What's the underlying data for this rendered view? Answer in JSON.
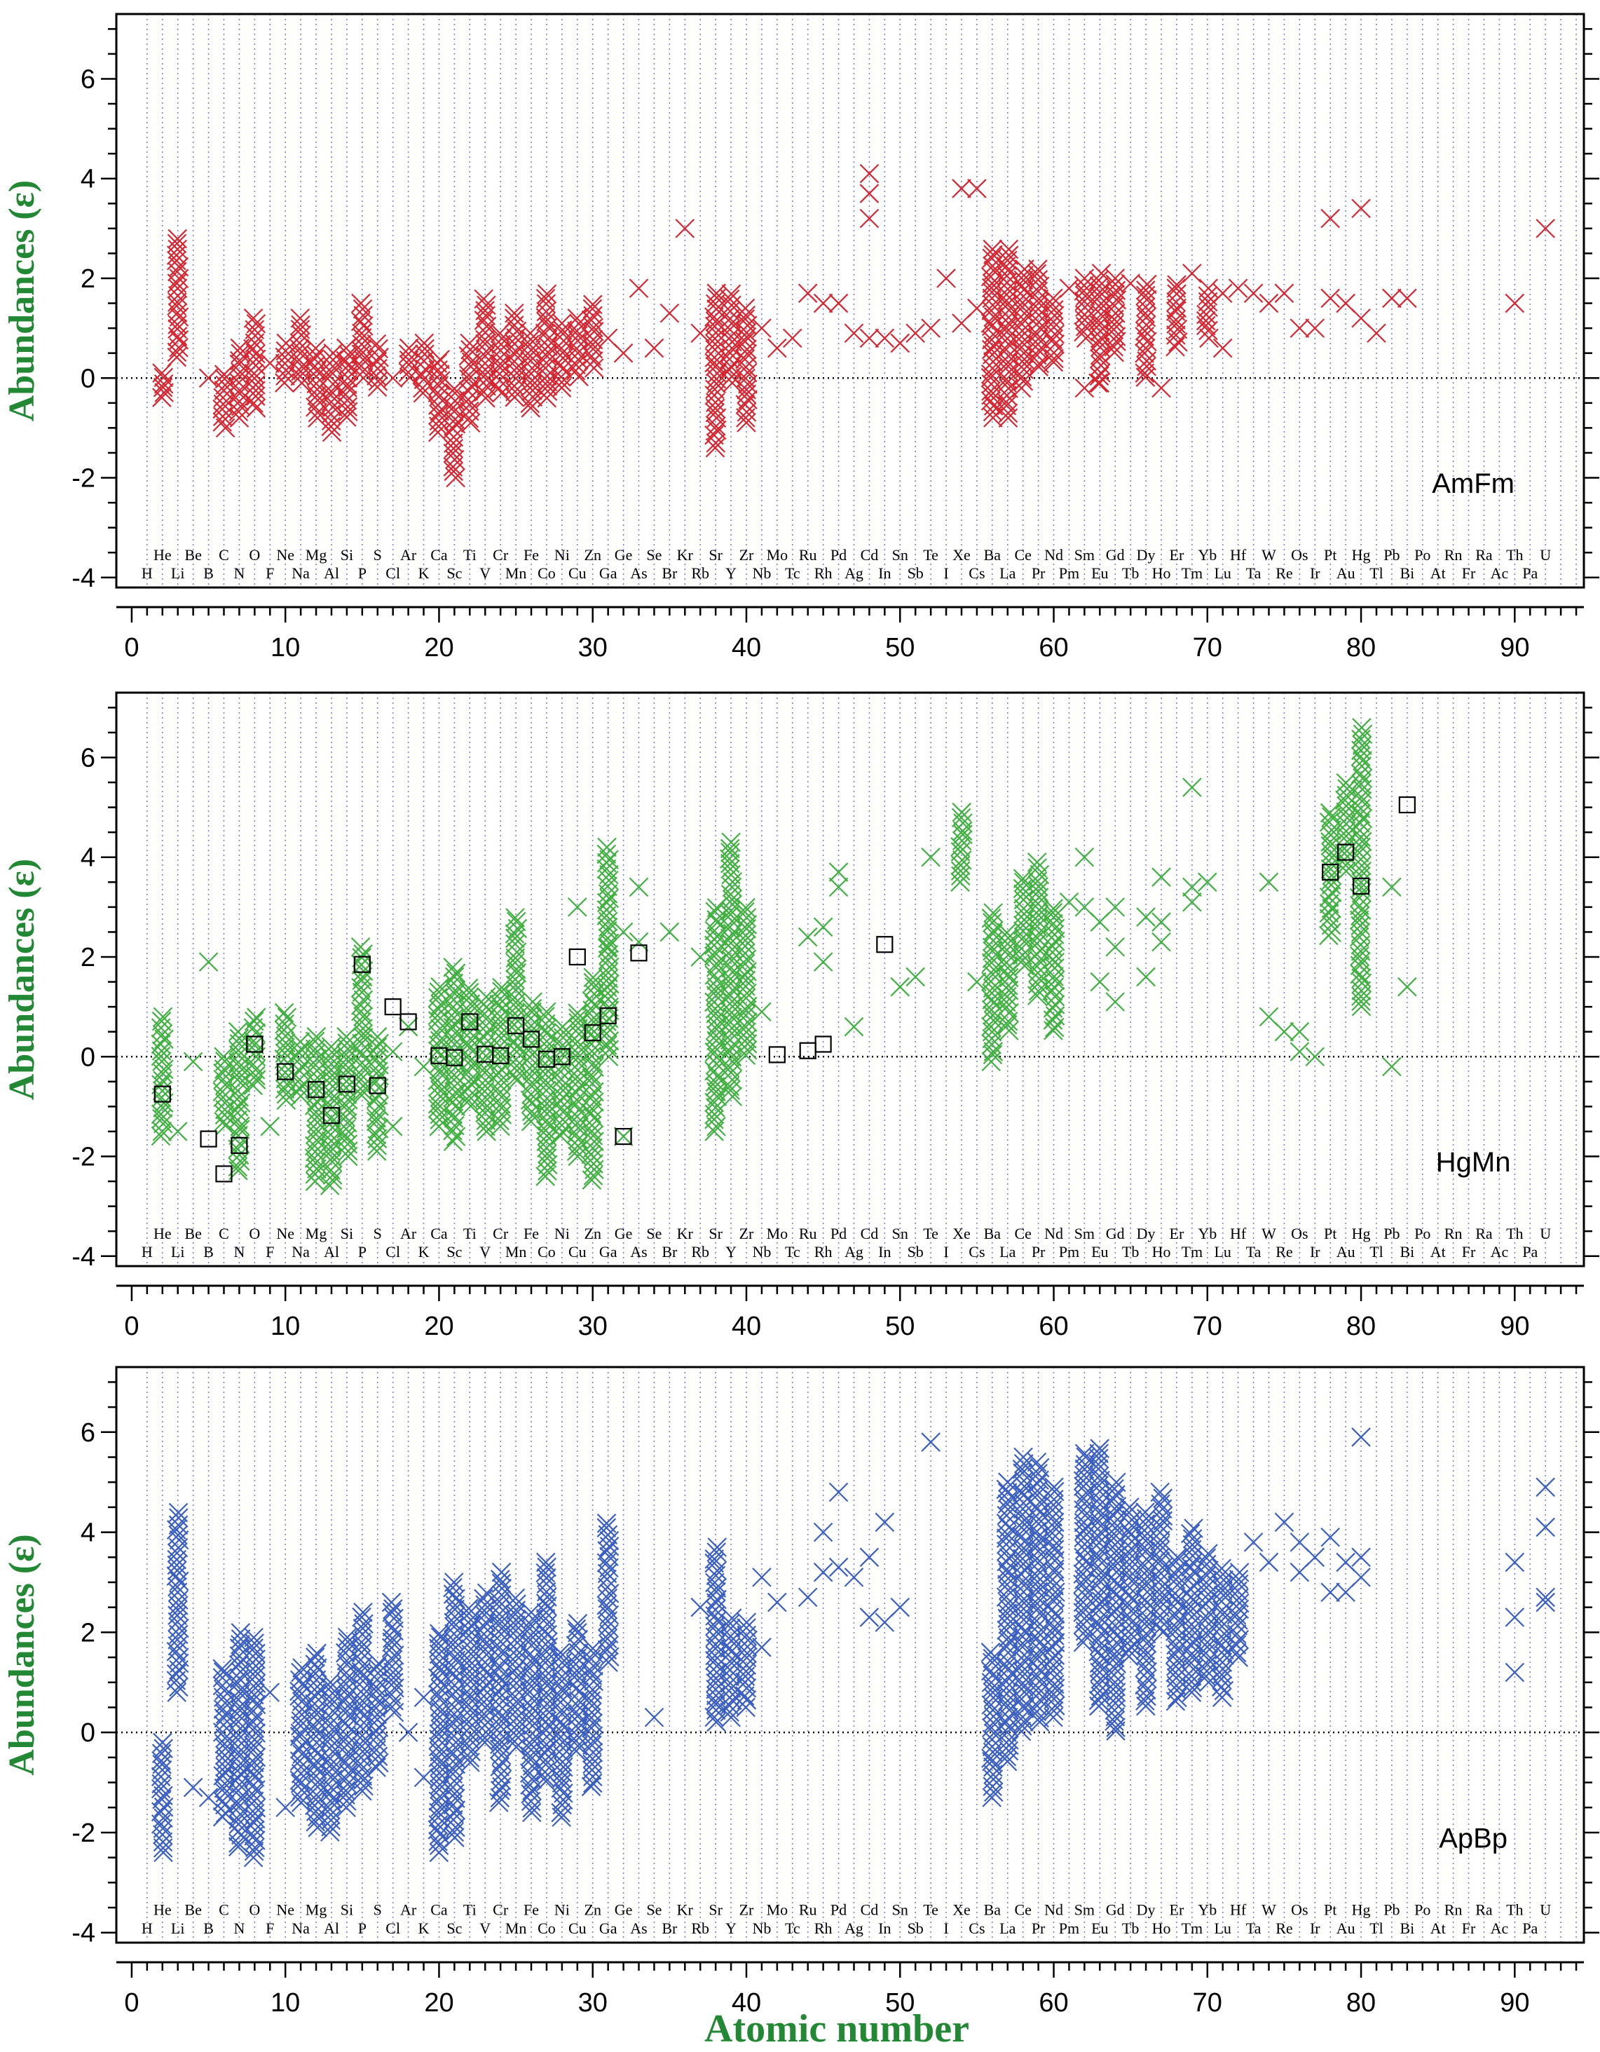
{
  "chart_data": [
    {
      "type": "scatter",
      "label": "AmFm",
      "color": "#d62631",
      "xlabel": "",
      "ylabel": "Abundances (ε)",
      "xlim": [
        -1,
        94.5
      ],
      "ylim": [
        -4.2,
        7.3
      ],
      "xticks": [
        0,
        10,
        20,
        30,
        40,
        50,
        60,
        70,
        80,
        90
      ],
      "yticks": [
        -4,
        -2,
        0,
        2,
        4,
        6
      ],
      "reference_line": 0,
      "grid": "vertical dotted lines at each atomic number",
      "ranges": [
        [
          2,
          -0.4,
          0.1
        ],
        [
          3,
          0.4,
          2.8
        ],
        [
          6,
          -1.0,
          0.1
        ],
        [
          7,
          -0.8,
          0.6
        ],
        [
          8,
          -0.6,
          1.2
        ],
        [
          10,
          -0.1,
          0.7
        ],
        [
          11,
          -0.1,
          1.2
        ],
        [
          12,
          -0.8,
          0.6
        ],
        [
          13,
          -1.1,
          0.5
        ],
        [
          14,
          -0.8,
          0.6
        ],
        [
          15,
          0.0,
          1.5
        ],
        [
          16,
          -0.2,
          0.7
        ],
        [
          18,
          0.0,
          0.6
        ],
        [
          19,
          -0.3,
          0.7
        ],
        [
          20,
          -1.1,
          0.4
        ],
        [
          21,
          -2.0,
          -0.2
        ],
        [
          22,
          -0.9,
          0.7
        ],
        [
          23,
          -0.4,
          1.6
        ],
        [
          24,
          -0.3,
          0.9
        ],
        [
          25,
          -0.4,
          1.3
        ],
        [
          26,
          -0.6,
          0.9
        ],
        [
          27,
          -0.4,
          1.7
        ],
        [
          28,
          -0.2,
          1.1
        ],
        [
          29,
          0.0,
          1.2
        ],
        [
          30,
          0.2,
          1.5
        ],
        [
          38,
          -1.4,
          1.7
        ],
        [
          39,
          -0.1,
          1.7
        ],
        [
          40,
          -0.9,
          1.4
        ],
        [
          56,
          -0.8,
          2.6
        ],
        [
          57,
          -0.8,
          2.6
        ],
        [
          58,
          -0.2,
          2.2
        ],
        [
          59,
          0.2,
          2.2
        ],
        [
          60,
          0.3,
          1.6
        ],
        [
          62,
          0.8,
          2.0
        ],
        [
          63,
          -0.1,
          2.1
        ],
        [
          64,
          0.5,
          2.0
        ],
        [
          66,
          0.0,
          1.9
        ],
        [
          68,
          0.6,
          1.9
        ],
        [
          70,
          0.8,
          1.8
        ]
      ],
      "points": [
        [
          41,
          1.0
        ],
        [
          42,
          0.6
        ],
        [
          43,
          0.8
        ],
        [
          44,
          1.7
        ],
        [
          45,
          1.5
        ],
        [
          46,
          1.5
        ],
        [
          47,
          0.9
        ],
        [
          48,
          3.2
        ],
        [
          48,
          3.7
        ],
        [
          48,
          4.1
        ],
        [
          48,
          0.8
        ],
        [
          49,
          0.8
        ],
        [
          50,
          0.7
        ],
        [
          51,
          0.9
        ],
        [
          52,
          1.0
        ],
        [
          53,
          2.0
        ],
        [
          54,
          3.8
        ],
        [
          54,
          1.1
        ],
        [
          55,
          3.8
        ],
        [
          55,
          1.4
        ],
        [
          31,
          0.8
        ],
        [
          32,
          0.5
        ],
        [
          33,
          1.8
        ],
        [
          34,
          0.6
        ],
        [
          35,
          1.3
        ],
        [
          36,
          3.0
        ],
        [
          37,
          0.9
        ],
        [
          17,
          0.0
        ],
        [
          9,
          0.3
        ],
        [
          5,
          0.0
        ],
        [
          61,
          1.8
        ],
        [
          65,
          1.9
        ],
        [
          67,
          -0.2
        ],
        [
          69,
          2.1
        ],
        [
          71,
          1.7
        ],
        [
          71,
          0.6
        ],
        [
          72,
          1.8
        ],
        [
          73,
          1.7
        ],
        [
          74,
          1.5
        ],
        [
          75,
          1.7
        ],
        [
          76,
          1.0
        ],
        [
          77,
          1.0
        ],
        [
          78,
          3.2
        ],
        [
          78,
          1.6
        ],
        [
          79,
          1.5
        ],
        [
          80,
          3.4
        ],
        [
          80,
          1.2
        ],
        [
          81,
          0.9
        ],
        [
          82,
          1.6
        ],
        [
          83,
          1.6
        ],
        [
          90,
          1.5
        ],
        [
          92,
          3.0
        ],
        [
          62,
          -0.2
        ],
        [
          63,
          -0.1
        ]
      ],
      "boxes": []
    },
    {
      "type": "scatter",
      "label": "HgMn",
      "color": "#40b040",
      "xlabel": "",
      "ylabel": "Abundances (ε)",
      "xlim": [
        -1,
        94.5
      ],
      "ylim": [
        -4.2,
        7.3
      ],
      "xticks": [
        0,
        10,
        20,
        30,
        40,
        50,
        60,
        70,
        80,
        90
      ],
      "yticks": [
        -4,
        -2,
        0,
        2,
        4,
        6
      ],
      "reference_line": 0,
      "grid": "vertical dotted lines at each atomic number",
      "ranges": [
        [
          2,
          -1.6,
          0.8
        ],
        [
          6,
          -1.4,
          0.0
        ],
        [
          7,
          -2.3,
          0.5
        ],
        [
          8,
          -0.6,
          0.8
        ],
        [
          10,
          -0.9,
          0.9
        ],
        [
          11,
          -0.8,
          0.3
        ],
        [
          12,
          -2.5,
          0.4
        ],
        [
          13,
          -2.6,
          0.2
        ],
        [
          14,
          -2.0,
          0.4
        ],
        [
          15,
          -0.8,
          2.2
        ],
        [
          16,
          -1.9,
          0.4
        ],
        [
          20,
          -1.4,
          1.4
        ],
        [
          21,
          -1.7,
          1.8
        ],
        [
          22,
          -1.0,
          1.4
        ],
        [
          23,
          -1.5,
          1.2
        ],
        [
          24,
          -1.4,
          1.4
        ],
        [
          25,
          -0.5,
          2.8
        ],
        [
          26,
          -1.3,
          1.1
        ],
        [
          27,
          -2.4,
          0.9
        ],
        [
          28,
          -1.6,
          0.6
        ],
        [
          29,
          -2.0,
          0.9
        ],
        [
          30,
          -2.5,
          1.6
        ],
        [
          31,
          0.0,
          4.2
        ],
        [
          38,
          -1.5,
          3.0
        ],
        [
          39,
          -0.8,
          4.3
        ],
        [
          40,
          0.0,
          3.0
        ],
        [
          54,
          3.5,
          4.9
        ],
        [
          56,
          -0.1,
          2.9
        ],
        [
          57,
          0.5,
          2.5
        ],
        [
          58,
          1.8,
          3.6
        ],
        [
          59,
          1.2,
          3.9
        ],
        [
          60,
          0.5,
          3.0
        ],
        [
          78,
          2.4,
          4.9
        ],
        [
          79,
          3.7,
          5.5
        ],
        [
          80,
          1.0,
          6.6
        ]
      ],
      "points": [
        [
          4,
          -0.1
        ],
        [
          5,
          1.9
        ],
        [
          3,
          -1.5
        ],
        [
          9,
          -1.4
        ],
        [
          17,
          -1.4
        ],
        [
          17,
          0.1
        ],
        [
          18,
          0.6
        ],
        [
          19,
          -0.2
        ],
        [
          29,
          3.0
        ],
        [
          31,
          2.2
        ],
        [
          32,
          2.5
        ],
        [
          32,
          -1.6
        ],
        [
          33,
          3.4
        ],
        [
          33,
          2.3
        ],
        [
          35,
          2.5
        ],
        [
          37,
          2.0
        ],
        [
          41,
          0.9
        ],
        [
          44,
          2.4
        ],
        [
          45,
          1.9
        ],
        [
          45,
          2.6
        ],
        [
          46,
          3.4
        ],
        [
          46,
          3.7
        ],
        [
          47,
          0.6
        ],
        [
          50,
          1.4
        ],
        [
          51,
          1.6
        ],
        [
          52,
          4.0
        ],
        [
          55,
          1.5
        ],
        [
          61,
          3.1
        ],
        [
          62,
          4.0
        ],
        [
          62,
          3.0
        ],
        [
          63,
          2.7
        ],
        [
          63,
          1.5
        ],
        [
          64,
          3.0
        ],
        [
          64,
          2.2
        ],
        [
          64,
          1.1
        ],
        [
          66,
          2.8
        ],
        [
          66,
          1.6
        ],
        [
          67,
          2.7
        ],
        [
          67,
          3.6
        ],
        [
          67,
          2.3
        ],
        [
          69,
          5.4
        ],
        [
          69,
          3.4
        ],
        [
          69,
          3.1
        ],
        [
          70,
          3.5
        ],
        [
          74,
          3.5
        ],
        [
          74,
          0.8
        ],
        [
          75,
          0.5
        ],
        [
          76,
          0.5
        ],
        [
          76,
          0.1
        ],
        [
          77,
          0.0
        ],
        [
          82,
          3.4
        ],
        [
          82,
          -0.2
        ],
        [
          83,
          1.4
        ]
      ],
      "boxes": [
        [
          2,
          -0.75
        ],
        [
          5,
          -1.65
        ],
        [
          6,
          -2.35
        ],
        [
          7,
          -1.78
        ],
        [
          8,
          0.25
        ],
        [
          10,
          -0.3
        ],
        [
          12,
          -0.66
        ],
        [
          13,
          -1.18
        ],
        [
          14,
          -0.55
        ],
        [
          15,
          1.85
        ],
        [
          16,
          -0.58
        ],
        [
          17,
          1.0
        ],
        [
          18,
          0.7
        ],
        [
          20,
          0.02
        ],
        [
          21,
          -0.02
        ],
        [
          22,
          0.7
        ],
        [
          23,
          0.05
        ],
        [
          24,
          0.02
        ],
        [
          25,
          0.62
        ],
        [
          26,
          0.35
        ],
        [
          27,
          -0.05
        ],
        [
          28,
          0.0
        ],
        [
          29,
          2.0
        ],
        [
          30,
          0.48
        ],
        [
          31,
          0.82
        ],
        [
          32,
          -1.6
        ],
        [
          33,
          2.08
        ],
        [
          42,
          0.04
        ],
        [
          44,
          0.12
        ],
        [
          45,
          0.25
        ],
        [
          49,
          2.25
        ],
        [
          78,
          3.7
        ],
        [
          79,
          4.1
        ],
        [
          80,
          3.42
        ],
        [
          83,
          5.05
        ]
      ]
    },
    {
      "type": "scatter",
      "label": "ApBp",
      "color": "#3a5fc0",
      "xlabel": "Atomic number",
      "ylabel": "Abundances (ε)",
      "xlim": [
        -1,
        94.5
      ],
      "ylim": [
        -4.2,
        7.3
      ],
      "xticks": [
        0,
        10,
        20,
        30,
        40,
        50,
        60,
        70,
        80,
        90
      ],
      "yticks": [
        -4,
        -2,
        0,
        2,
        4,
        6
      ],
      "reference_line": 0,
      "grid": "vertical dotted lines at each atomic number",
      "ranges": [
        [
          2,
          -2.4,
          -0.2
        ],
        [
          3,
          0.8,
          4.4
        ],
        [
          6,
          -1.7,
          1.3
        ],
        [
          7,
          -2.3,
          2.0
        ],
        [
          8,
          -2.5,
          1.9
        ],
        [
          11,
          -1.4,
          1.3
        ],
        [
          12,
          -1.9,
          1.6
        ],
        [
          13,
          -2.0,
          1.0
        ],
        [
          14,
          -1.5,
          1.9
        ],
        [
          15,
          -1.2,
          2.4
        ],
        [
          16,
          -0.7,
          1.4
        ],
        [
          17,
          0.4,
          2.6
        ],
        [
          20,
          -2.4,
          2.0
        ],
        [
          21,
          -2.1,
          3.0
        ],
        [
          22,
          -0.6,
          2.5
        ],
        [
          23,
          -0.2,
          2.8
        ],
        [
          24,
          -1.4,
          3.2
        ],
        [
          25,
          -0.3,
          2.7
        ],
        [
          26,
          -1.6,
          2.4
        ],
        [
          27,
          -1.0,
          3.4
        ],
        [
          28,
          -1.7,
          1.6
        ],
        [
          29,
          -0.4,
          2.2
        ],
        [
          30,
          -1.1,
          1.7
        ],
        [
          31,
          1.4,
          4.2
        ],
        [
          38,
          0.2,
          3.7
        ],
        [
          39,
          0.3,
          2.3
        ],
        [
          40,
          0.5,
          2.2
        ],
        [
          56,
          -1.3,
          1.6
        ],
        [
          57,
          -0.6,
          5.0
        ],
        [
          58,
          0.0,
          5.5
        ],
        [
          59,
          0.2,
          5.4
        ],
        [
          60,
          0.3,
          4.9
        ],
        [
          62,
          1.8,
          5.6
        ],
        [
          63,
          0.5,
          5.7
        ],
        [
          64,
          0.0,
          5.0
        ],
        [
          65,
          1.5,
          4.5
        ],
        [
          66,
          0.5,
          4.4
        ],
        [
          67,
          2.0,
          4.8
        ],
        [
          68,
          0.6,
          3.5
        ],
        [
          69,
          0.8,
          4.1
        ],
        [
          70,
          1.0,
          3.6
        ],
        [
          71,
          0.7,
          3.3
        ],
        [
          72,
          1.5,
          3.2
        ]
      ],
      "points": [
        [
          4,
          -1.1
        ],
        [
          5,
          -1.3
        ],
        [
          9,
          0.8
        ],
        [
          10,
          -1.5
        ],
        [
          19,
          -0.9
        ],
        [
          19,
          0.7
        ],
        [
          18,
          0.0
        ],
        [
          34,
          0.3
        ],
        [
          37,
          2.5
        ],
        [
          41,
          3.1
        ],
        [
          41,
          1.7
        ],
        [
          42,
          2.6
        ],
        [
          44,
          2.7
        ],
        [
          45,
          4.0
        ],
        [
          45,
          3.2
        ],
        [
          46,
          4.8
        ],
        [
          46,
          3.3
        ],
        [
          47,
          3.1
        ],
        [
          48,
          3.5
        ],
        [
          48,
          2.3
        ],
        [
          49,
          4.2
        ],
        [
          49,
          2.2
        ],
        [
          50,
          2.5
        ],
        [
          52,
          5.8
        ],
        [
          73,
          3.8
        ],
        [
          74,
          3.4
        ],
        [
          75,
          4.2
        ],
        [
          76,
          3.8
        ],
        [
          76,
          3.2
        ],
        [
          77,
          3.5
        ],
        [
          78,
          3.9
        ],
        [
          78,
          2.8
        ],
        [
          79,
          3.4
        ],
        [
          79,
          2.8
        ],
        [
          80,
          5.9
        ],
        [
          80,
          3.5
        ],
        [
          80,
          3.1
        ],
        [
          90,
          3.4
        ],
        [
          90,
          2.3
        ],
        [
          90,
          1.2
        ],
        [
          92,
          4.9
        ],
        [
          92,
          4.1
        ],
        [
          92,
          2.7
        ],
        [
          92,
          2.6
        ]
      ],
      "boxes": []
    }
  ],
  "element_symbols": [
    "H",
    "He",
    "Li",
    "Be",
    "B",
    "C",
    "N",
    "O",
    "F",
    "Ne",
    "Na",
    "Mg",
    "Al",
    "Si",
    "P",
    "S",
    "Cl",
    "Ar",
    "K",
    "Ca",
    "Sc",
    "Ti",
    "V",
    "Cr",
    "Mn",
    "Fe",
    "Co",
    "Ni",
    "Cu",
    "Zn",
    "Ga",
    "Ge",
    "As",
    "Se",
    "Br",
    "Kr",
    "Rb",
    "Sr",
    "Y",
    "Zr",
    "Nb",
    "Mo",
    "Tc",
    "Ru",
    "Rh",
    "Pd",
    "Ag",
    "Cd",
    "In",
    "Sn",
    "Sb",
    "Te",
    "I",
    "Xe",
    "Cs",
    "Ba",
    "La",
    "Ce",
    "Pr",
    "Nd",
    "Pm",
    "Sm",
    "Eu",
    "Gd",
    "Tb",
    "Dy",
    "Ho",
    "Er",
    "Tm",
    "Yb",
    "Lu",
    "Hf",
    "Ta",
    "W",
    "Re",
    "Os",
    "Ir",
    "Pt",
    "Au",
    "Hg",
    "Tl",
    "Pb",
    "Bi",
    "Po",
    "At",
    "Rn",
    "Fr",
    "Ra",
    "Ac",
    "Th",
    "Pa",
    "U"
  ],
  "colors": {
    "grid": "#7b82d6",
    "axis": "#000000",
    "title_green": "#228833",
    "box_edge": "#000000"
  }
}
